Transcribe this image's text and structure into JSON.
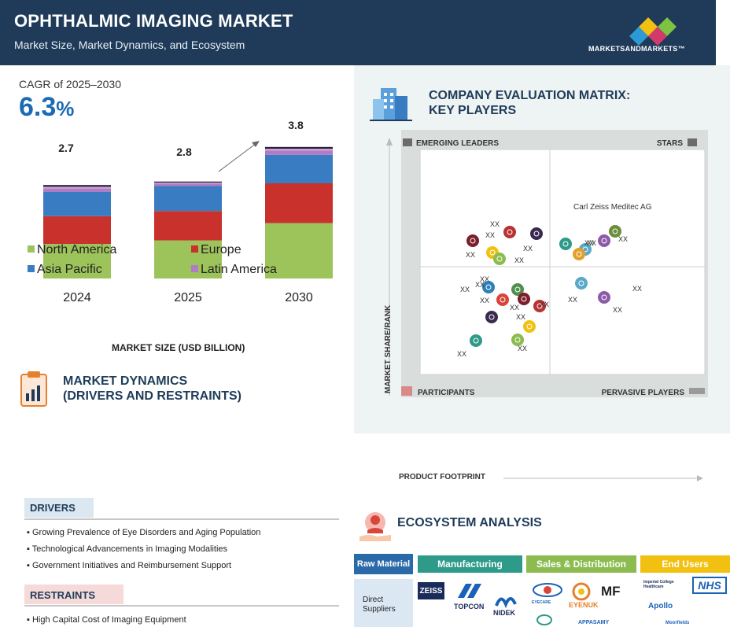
{
  "header": {
    "title": "OPHTHALMIC IMAGING MARKET",
    "subtitle": "Market Size, Market Dynamics, and Ecosystem",
    "logo_text": "MARKETSANDMARKETS™"
  },
  "cagr": {
    "label": "CAGR of 2025–2030",
    "value": "6.3",
    "unit": "%"
  },
  "chart_data": {
    "type": "bar",
    "stacked": true,
    "categories": [
      "2024",
      "2025",
      "2030"
    ],
    "totals": [
      2.7,
      2.8,
      3.8
    ],
    "series": [
      {
        "name": "North America",
        "color": "#9dc35b",
        "values": [
          1.0,
          1.1,
          1.6
        ]
      },
      {
        "name": "Europe",
        "color": "#c9312c",
        "values": [
          0.8,
          0.85,
          1.15
        ]
      },
      {
        "name": "Asia Pacific",
        "color": "#3a7cc1",
        "values": [
          0.7,
          0.72,
          0.82
        ]
      },
      {
        "name": "Latin America",
        "color": "#b07cc6",
        "values": [
          0.1,
          0.07,
          0.13
        ]
      },
      {
        "name": "",
        "color": "#c6a3cf",
        "values": [
          0.05,
          0.03,
          0.05
        ]
      },
      {
        "name": "",
        "color": "#2a1f3d",
        "values": [
          0.05,
          0.03,
          0.05
        ]
      }
    ],
    "legend": [
      "North America",
      "Europe",
      "Asia Pacific",
      "Latin America"
    ],
    "legend_position": "inside-bottom",
    "xlabel": "MARKET SIZE (USD BILLION)",
    "ylabel": ""
  },
  "market_dynamics": {
    "title_line1": "MARKET DYNAMICS",
    "title_line2": "(DRIVERS AND RESTRAINTS)"
  },
  "matrix": {
    "title_line1": "COMPANY EVALUATION MATRIX:",
    "title_line2": "KEY PLAYERS",
    "quadrants": {
      "top_left": "EMERGING LEADERS",
      "top_right": "STARS",
      "bottom_left": "PARTICIPANTS",
      "bottom_right": "PERVASIVE PLAYERS"
    },
    "y_axis": "MARKET SHARE/RANK",
    "x_axis": "PRODUCT FOOTPRINT",
    "highlight_company": "Carl Zeiss Meditec AG",
    "placeholder_label": "XX",
    "dot_colors": [
      "#7a1f2b",
      "#b83232",
      "#3a2a50",
      "#f2c010",
      "#8cbc4f",
      "#2d9a8a",
      "#5aa9c9",
      "#8e5aa8",
      "#6b8e3a",
      "#e2a02a",
      "#2d7fb8",
      "#4f8f4f",
      "#d8453a"
    ]
  },
  "drivers": {
    "title": "DRIVERS",
    "items": [
      "Growing Prevalence of Eye Disorders and Aging Population",
      "Technological Advancements in Imaging Modalities",
      "Government Initiatives and Reimbursement Support"
    ]
  },
  "restraints": {
    "title": "RESTRAINTS",
    "items": [
      "High Capital Cost of Imaging Equipment"
    ]
  },
  "ecosystem": {
    "title": "ECOSYSTEM ANALYSIS",
    "headers": [
      "Raw Material",
      "Manufacturing",
      "Sales & Distribution",
      "End Users"
    ],
    "row_label": "Direct Suppliers",
    "logos": {
      "manufacturing": [
        "ZEISS",
        "TOPCON",
        "NIDEK"
      ],
      "sales": [
        "EYECARE",
        "EYENUK",
        "MF",
        "APPASAMY"
      ],
      "end_users": [
        "NHS",
        "Imperial College Healthcare",
        "Apollo",
        "Moorfields"
      ]
    }
  }
}
